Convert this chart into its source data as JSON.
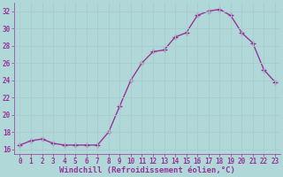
{
  "hours": [
    0,
    1,
    2,
    3,
    4,
    5,
    6,
    7,
    8,
    9,
    10,
    11,
    12,
    13,
    14,
    15,
    16,
    17,
    18,
    19,
    20,
    21,
    22,
    23
  ],
  "values": [
    16.5,
    17.0,
    17.2,
    16.7,
    16.5,
    16.5,
    16.5,
    16.5,
    18.0,
    21.0,
    24.0,
    26.0,
    27.3,
    27.5,
    29.0,
    29.5,
    31.5,
    32.0,
    32.2,
    31.5,
    29.5,
    28.3,
    25.2,
    23.8
  ],
  "line_color": "#993399",
  "marker": "+",
  "bg_color": "#b0d8d8",
  "grid_color": "#c8e8e8",
  "xlabel": "Windchill (Refroidissement éolien,°C)",
  "ylim": [
    15.5,
    33.0
  ],
  "xlim": [
    -0.5,
    23.5
  ],
  "yticks": [
    16,
    18,
    20,
    22,
    24,
    26,
    28,
    30,
    32
  ],
  "xticks": [
    0,
    1,
    2,
    3,
    4,
    5,
    6,
    7,
    8,
    9,
    10,
    11,
    12,
    13,
    14,
    15,
    16,
    17,
    18,
    19,
    20,
    21,
    22,
    23
  ],
  "tick_color": "#993399",
  "label_fontsize": 5.5,
  "xlabel_fontsize": 6.5
}
